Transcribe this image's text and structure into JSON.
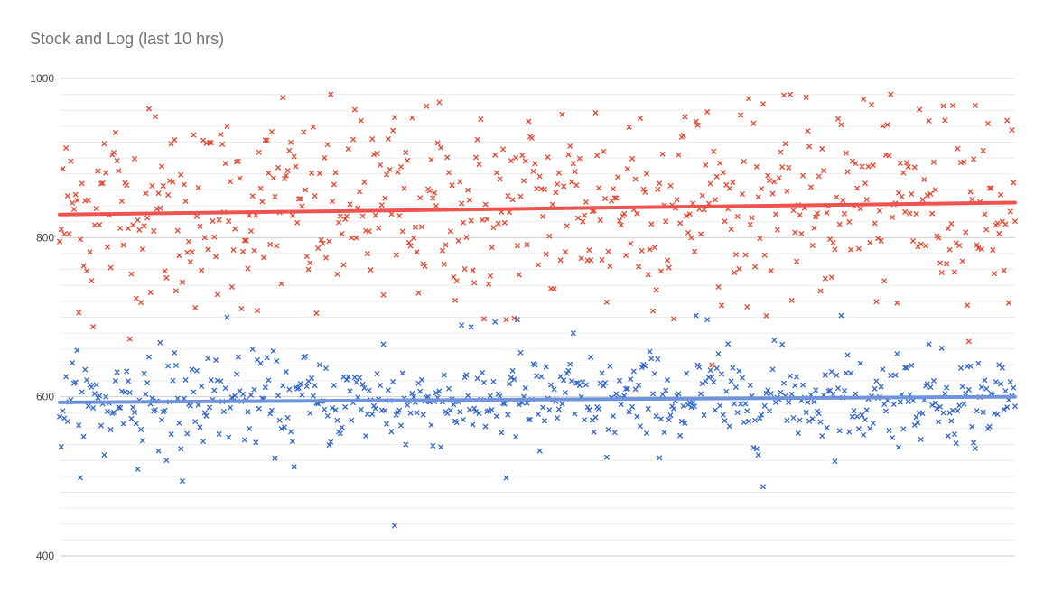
{
  "chart_data": {
    "type": "scatter",
    "title": "Stock and Log (last 10 hrs)",
    "xlabel": "",
    "ylabel": "",
    "ylim": [
      400,
      1000
    ],
    "yticks": [
      400,
      600,
      800,
      1000
    ],
    "grid": true,
    "legend": "none",
    "x_count": 600,
    "series": [
      {
        "marker": "x",
        "color": "#e8452f",
        "approx_range": [
          640,
          980
        ],
        "trendline": {
          "start": 829,
          "end": 844,
          "color": "#ef5350"
        },
        "sample_values": [
          795,
          896,
          868,
          688,
          918,
          932,
          866,
          822,
          962,
          837,
          918,
          744,
          929,
          800,
          776,
          940,
          896,
          828,
          862,
          933,
          976,
          902,
          860,
          705,
          917,
          819,
          842,
          947,
          924,
          728,
          951,
          907,
          782,
          861,
          970,
          808,
          843,
          759,
          698,
          904,
          697,
          790,
          946,
          877,
          736,
          955,
          893,
          828,
          957,
          719,
          876,
          939,
          950,
          817,
          905,
          698,
          952,
          946,
          958,
          738,
          862,
          954,
          825,
          968,
          870,
          918,
          770,
          934,
          877,
          798,
          942,
          896,
          974,
          818,
          904,
          718,
          889,
          961,
          855,
          756,
          966,
          895,
          966,
          810,
          818,
          718,
          980
        ]
      },
      {
        "marker": "x",
        "color": "#3366cc",
        "approx_range": [
          435,
          710
        ],
        "trendline": {
          "start": 593,
          "end": 600,
          "color": "#6f94dc"
        },
        "sample_values": [
          575,
          596,
          606,
          586,
          527,
          620,
          632,
          509,
          650,
          668,
          553,
          494,
          606,
          580,
          646,
          700,
          650,
          560,
          642,
          583,
          614,
          512,
          651,
          592,
          576,
          556,
          607,
          584,
          578,
          666,
          438,
          540,
          580,
          600,
          607,
          583,
          690,
          565,
          618,
          694,
          498,
          697,
          571,
          532,
          615,
          591,
          680,
          571,
          574,
          524,
          598,
          581,
          563,
          648,
          603,
          585,
          567,
          702,
          697,
          654,
          563,
          591,
          601,
          487,
          671,
          601,
          625,
          593,
          579,
          608,
          702,
          575,
          552,
          610,
          582,
          654,
          594,
          580,
          612,
          661,
          583,
          591,
          535,
          610,
          578,
          596,
          594,
          568,
          646,
          575
        ]
      }
    ]
  }
}
